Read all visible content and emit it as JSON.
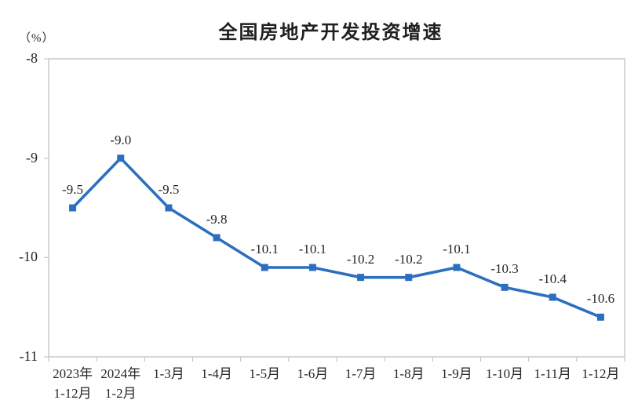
{
  "chart_data": {
    "type": "line",
    "title": "全国房地产开发投资增速",
    "unit_label": "（%）",
    "categories": [
      [
        "2023年",
        "1-12月"
      ],
      [
        "2024年",
        "1-2月"
      ],
      [
        "1-3月"
      ],
      [
        "1-4月"
      ],
      [
        "1-5月"
      ],
      [
        "1-6月"
      ],
      [
        "1-7月"
      ],
      [
        "1-8月"
      ],
      [
        "1-9月"
      ],
      [
        "1-10月"
      ],
      [
        "1-11月"
      ],
      [
        "1-12月"
      ]
    ],
    "values": [
      -9.5,
      -9.0,
      -9.5,
      -9.8,
      -10.1,
      -10.1,
      -10.2,
      -10.2,
      -10.1,
      -10.3,
      -10.4,
      -10.6
    ],
    "point_labels": [
      "-9.5",
      "-9.0",
      "-9.5",
      "-9.8",
      "-10.1",
      "-10.1",
      "-10.2",
      "-10.2",
      "-10.1",
      "-10.3",
      "-10.4",
      "-10.6"
    ],
    "ylabel": "",
    "xlabel": "",
    "ylim": [
      -11,
      -8
    ],
    "yticks": [
      "-8",
      "-9",
      "-10",
      "-11"
    ],
    "ytick_values": [
      -8,
      -9,
      -10,
      -11
    ],
    "grid": false,
    "legend": "none",
    "marker": "square",
    "colors": {
      "line": "#2C6FBF",
      "marker": "#2C6FBF",
      "axis": "#C6C6C6",
      "text": "#262626",
      "title": "#1f1f1f"
    }
  }
}
